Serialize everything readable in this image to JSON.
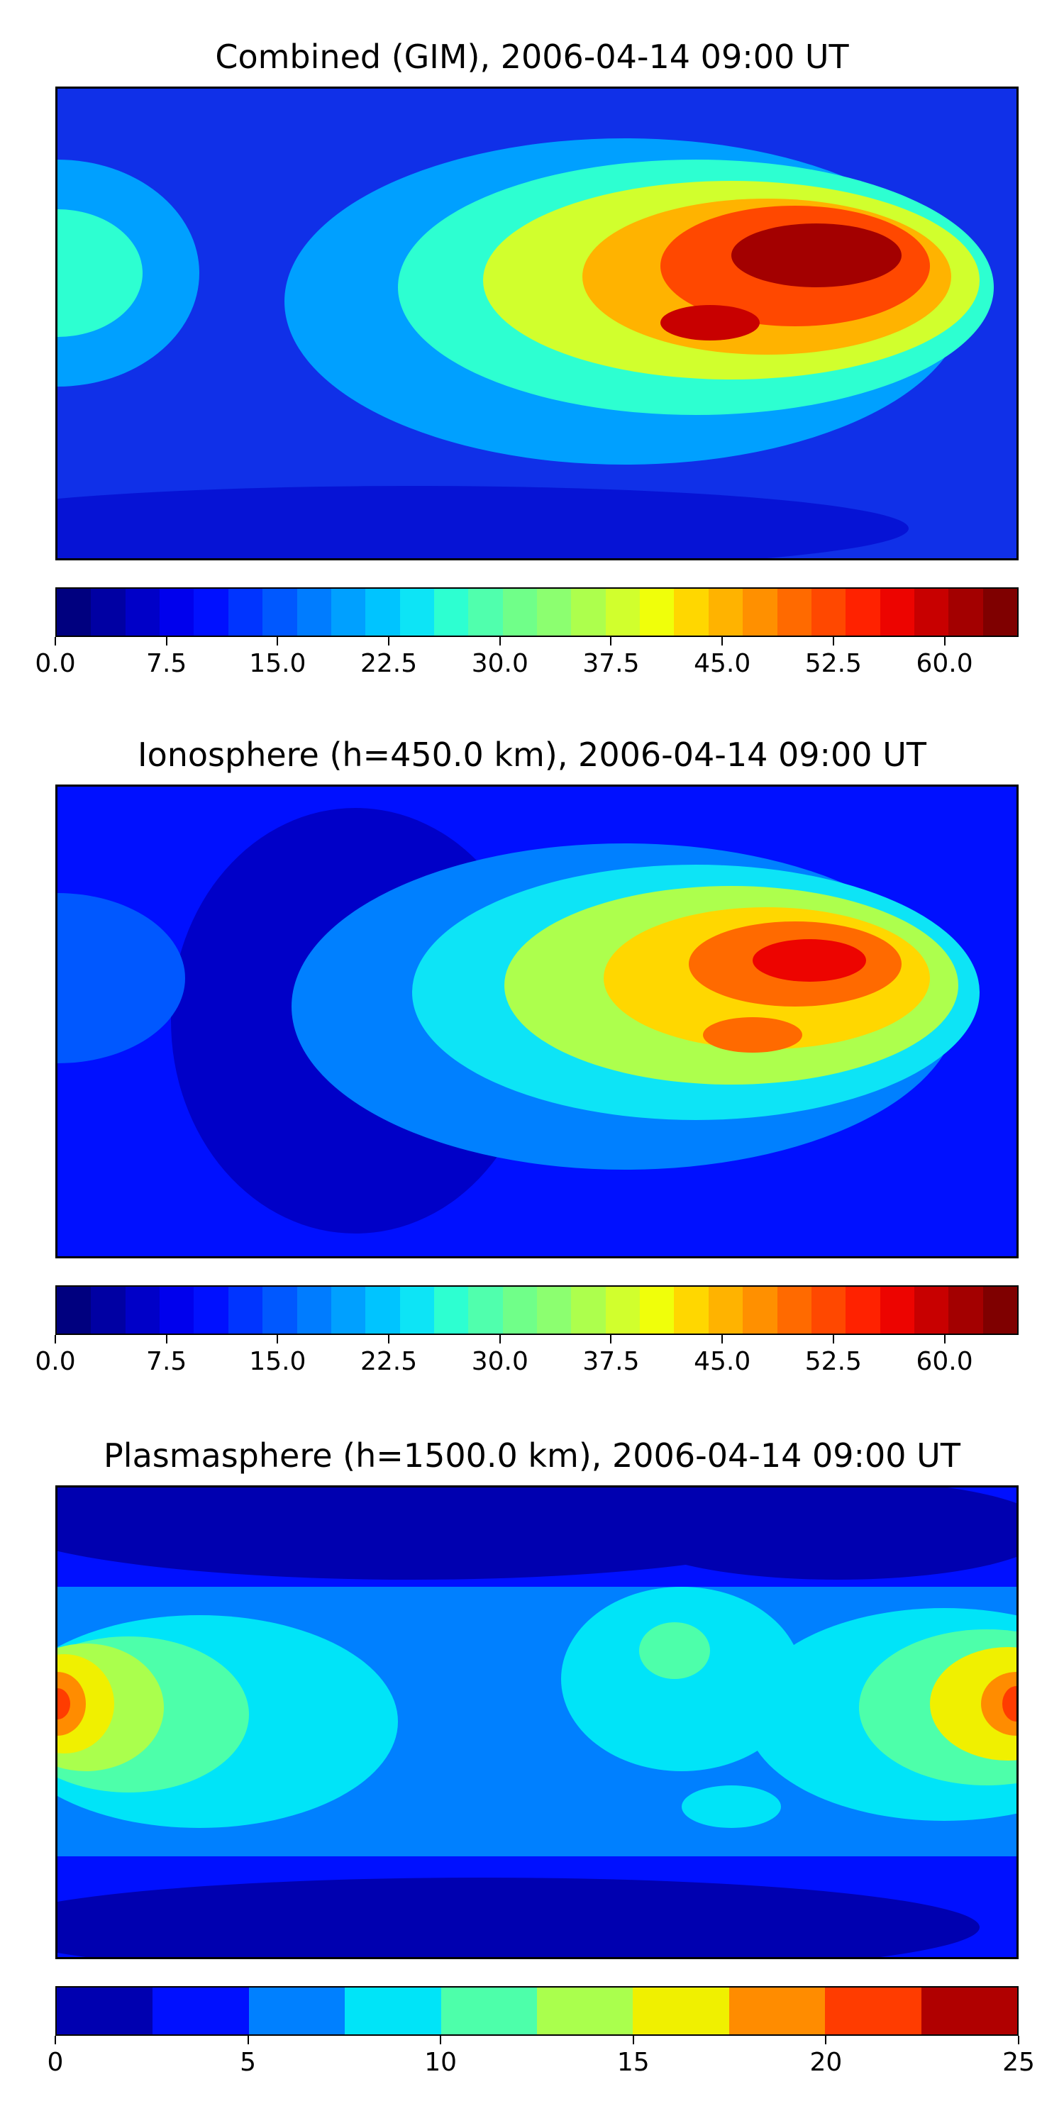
{
  "panels": [
    {
      "title": "Combined (GIM), 2006-04-14 09:00 UT",
      "colorbar": {
        "ticks": [
          "0.0",
          "7.5",
          "15.0",
          "22.5",
          "30.0",
          "37.5",
          "45.0",
          "52.5",
          "60.0"
        ],
        "min": 0,
        "max": 65,
        "colors": [
          "#00007f",
          "#0000a3",
          "#0000c8",
          "#0000ed",
          "#0010ff",
          "#0034ff",
          "#0058ff",
          "#007cff",
          "#00a0ff",
          "#00c4ff",
          "#0de4f6",
          "#2dffd1",
          "#50ffad",
          "#70ff89",
          "#8cff70",
          "#adff4d",
          "#d1ff2d",
          "#f0ff0a",
          "#ffd700",
          "#ffb300",
          "#ff9000",
          "#ff6a00",
          "#ff4800",
          "#ff2200",
          "#ed0400",
          "#c80000",
          "#a30000",
          "#7f0000"
        ]
      }
    },
    {
      "title": "Ionosphere  (h=450.0 km), 2006-04-14 09:00 UT",
      "colorbar": {
        "ticks": [
          "0.0",
          "7.5",
          "15.0",
          "22.5",
          "30.0",
          "37.5",
          "45.0",
          "52.5",
          "60.0"
        ],
        "min": 0,
        "max": 65,
        "colors": [
          "#00007f",
          "#0000a3",
          "#0000c8",
          "#0000ed",
          "#0010ff",
          "#0034ff",
          "#0058ff",
          "#007cff",
          "#00a0ff",
          "#00c4ff",
          "#0de4f6",
          "#2dffd1",
          "#50ffad",
          "#70ff89",
          "#8cff70",
          "#adff4d",
          "#d1ff2d",
          "#f0ff0a",
          "#ffd700",
          "#ffb300",
          "#ff9000",
          "#ff6a00",
          "#ff4800",
          "#ff2200",
          "#ed0400",
          "#c80000",
          "#a30000",
          "#7f0000"
        ]
      }
    },
    {
      "title": "Plasmasphere (h=1500.0 km), 2006-04-14 09:00 UT",
      "colorbar": {
        "ticks": [
          "0",
          "5",
          "10",
          "15",
          "20",
          "25"
        ],
        "min": 0,
        "max": 25,
        "colors": [
          "#0000b0",
          "#0010ff",
          "#0080ff",
          "#00e4f8",
          "#4dffaa",
          "#aaff4d",
          "#f0f000",
          "#ff8c00",
          "#ff3c00",
          "#b00000"
        ]
      }
    }
  ]
}
